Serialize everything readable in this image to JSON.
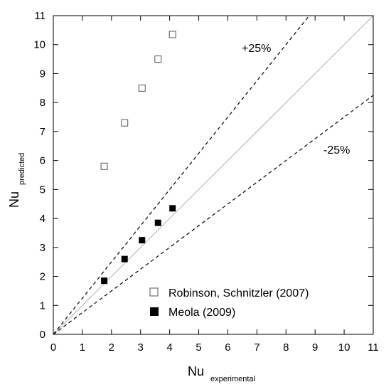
{
  "chart_data": {
    "type": "scatter",
    "xlabel": "Nu",
    "xlabel_sub": "experimental",
    "ylabel": "Nu",
    "ylabel_sub": "predicted",
    "xlim": [
      0,
      11
    ],
    "ylim": [
      0,
      11
    ],
    "xticks": [
      "0",
      "1",
      "2",
      "3",
      "4",
      "5",
      "6",
      "7",
      "8",
      "9",
      "10",
      "11"
    ],
    "yticks": [
      "0",
      "1",
      "2",
      "3",
      "4",
      "5",
      "6",
      "7",
      "8",
      "9",
      "10",
      "11"
    ],
    "grid": false,
    "legend_position": "bottom-right",
    "reference_lines": [
      {
        "name": "y=x",
        "slope": 1.0,
        "style": "solid",
        "color": "#b0b0b0"
      },
      {
        "name": "+25%",
        "slope": 1.25,
        "style": "dashed",
        "color": "#000000",
        "label": "+25%"
      },
      {
        "name": "-25%",
        "slope": 0.75,
        "style": "dashed",
        "color": "#000000",
        "label": "-25%"
      }
    ],
    "series": [
      {
        "name": "Robinson, Schnitzler (2007)",
        "marker": "open-square",
        "x": [
          1.75,
          2.45,
          3.05,
          3.6,
          4.1
        ],
        "y": [
          5.8,
          7.3,
          8.5,
          9.5,
          10.35
        ]
      },
      {
        "name": "Meola (2009)",
        "marker": "filled-square",
        "x": [
          1.75,
          2.45,
          3.05,
          3.6,
          4.1
        ],
        "y": [
          1.85,
          2.6,
          3.25,
          3.85,
          4.35
        ]
      }
    ]
  }
}
